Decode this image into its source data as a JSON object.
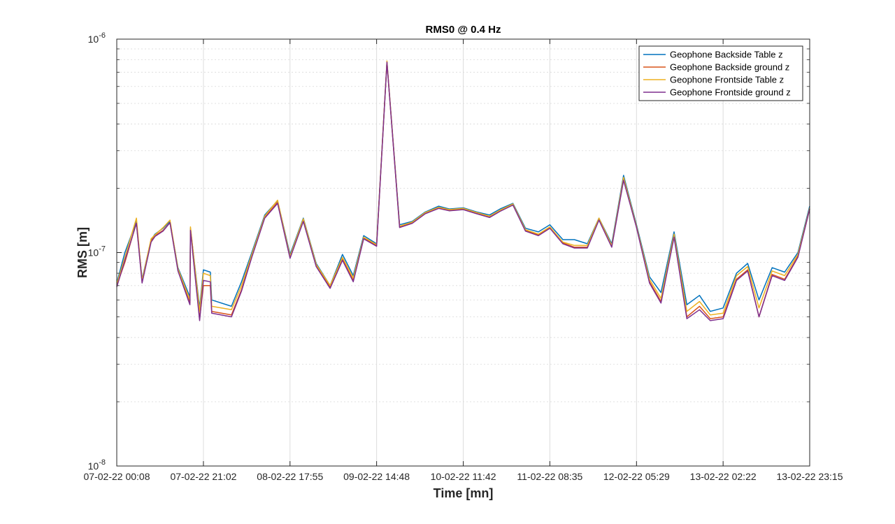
{
  "chart_data": {
    "type": "line",
    "title": "RMS0 @ 0.4 Hz",
    "xlabel": "Time [mn]",
    "ylabel": "RMS [m]",
    "yscale": "log",
    "ylim": [
      1e-08,
      1e-06
    ],
    "y_ticks": [
      {
        "value": 1e-08,
        "mantissa": "10",
        "exponent": "-8"
      },
      {
        "value": 1e-07,
        "mantissa": "10",
        "exponent": "-7"
      },
      {
        "value": 1e-06,
        "mantissa": "10",
        "exponent": "-6"
      }
    ],
    "x_ticks": [
      "07-02-22 00:08",
      "07-02-22 21:02",
      "08-02-22 17:55",
      "09-02-22 14:48",
      "10-02-22 11:42",
      "11-02-22 08:35",
      "12-02-22 05:29",
      "13-02-22 02:22",
      "13-02-22 23:15"
    ],
    "xlim": [
      "07-02-22 00:08",
      "13-02-22 23:15"
    ],
    "grid": true,
    "legend_position": "top-right",
    "series": [
      {
        "name": "Geophone Backside Table z",
        "color": "#0072BD",
        "x": [
          "07-02-22 00:08",
          "07-02-22 06:14",
          "07-02-22 09:21",
          "07-02-22 12:58",
          "07-02-22 17:54",
          "07-02-22 21:02",
          "07-02-22 22:42",
          "07-02-22 02:05",
          "07-02-22 04:52",
          "07-02-22 08:25",
          "07-02-22 11:18",
          "07-02-22 14:53",
          "07-02-22 17:46",
          "07-02-22 20:07",
          "07-02-22 23:02",
          "08-02-22 03:47",
          "08-02-22 06:13",
          "08-02-22 08:42",
          "08-02-22 11:49",
          "08-02-22 14:55",
          "08-02-22 17:55",
          "08-02-22 21:08",
          "09-02-22 00:14",
          "09-02-22 03:35",
          "09-02-22 06:34",
          "09-02-22 09:10",
          "09-02-22 11:41",
          "09-02-22 14:48",
          "09-02-22 17:18",
          "09-02-22 20:21",
          "09-02-22 23:24",
          "10-02-22 02:32",
          "10-02-22 05:46",
          "10-02-22 08:19",
          "10-02-22 11:42",
          "10-02-22 14:55",
          "10-02-22 18:02",
          "10-02-22 20:35",
          "10-02-22 23:41",
          "11-02-22 02:42",
          "11-02-22 05:49",
          "11-02-22 08:35",
          "11-02-22 11:43",
          "11-02-22 14:30",
          "11-02-22 17:37",
          "11-02-22 20:25",
          "11-02-22 23:31",
          "12-02-22 02:22",
          "12-02-22 05:29",
          "12-02-22 08:37",
          "12-02-22 11:23",
          "12-02-22 14:32",
          "12-02-22 17:37",
          "12-02-22 20:40",
          "12-02-22 23:16",
          "13-02-22 02:22",
          "13-02-22 05:36",
          "13-02-22 08:18",
          "13-02-22 11:01",
          "13-02-22 14:12",
          "13-02-22 17:13",
          "13-02-22 20:24",
          "13-02-22 23:15"
        ],
        "y": [
          7.2e-08,
          7.5e-08,
          1.22e-07,
          1.4e-07,
          1.3e-07,
          8.3e-08,
          8.1e-08,
          1e-07,
          1.4e-07,
          1.15e-07,
          1.3e-07,
          8.5e-08,
          6.2e-08,
          5.5e-08,
          6e-08,
          5.6e-08,
          7.3e-08,
          1e-07,
          1.5e-07,
          1.75e-07,
          9.8e-08,
          1.45e-07,
          8.9e-08,
          7e-08,
          9.8e-08,
          7.8e-08,
          1.2e-07,
          1.1e-07,
          7.8e-07,
          1.35e-07,
          1.4e-07,
          1.55e-07,
          1.65e-07,
          1.6e-07,
          1.62e-07,
          1.55e-07,
          1.5e-07,
          1.6e-07,
          1.7e-07,
          1.3e-07,
          1.25e-07,
          1.35e-07,
          1.15e-07,
          1.15e-07,
          1.1e-07,
          1.45e-07,
          1.1e-07,
          2.3e-07,
          1.35e-07,
          7.7e-08,
          6.5e-08,
          1.25e-07,
          5.7e-08,
          6.3e-08,
          5.3e-08,
          5.5e-08,
          8e-08,
          8.9e-08,
          6e-08,
          8.5e-08,
          8.1e-08,
          1e-07,
          1.65e-07
        ]
      },
      {
        "name": "Geophone Backside ground z",
        "color": "#D95319",
        "x": [
          "07-02-22 00:08",
          "07-02-22 06:14",
          "07-02-22 09:21",
          "07-02-22 12:58",
          "07-02-22 17:54",
          "07-02-22 21:02",
          "07-02-22 22:42",
          "07-02-22 02:05",
          "07-02-22 04:52",
          "07-02-22 08:25",
          "07-02-22 11:18",
          "07-02-22 14:53",
          "07-02-22 17:46",
          "07-02-22 20:07",
          "07-02-22 23:02",
          "08-02-22 03:47",
          "08-02-22 06:13",
          "08-02-22 08:42",
          "08-02-22 11:49",
          "08-02-22 14:55",
          "08-02-22 17:55",
          "08-02-22 21:08",
          "09-02-22 00:14",
          "09-02-22 03:35",
          "09-02-22 06:34",
          "09-02-22 09:10",
          "09-02-22 11:41",
          "09-02-22 14:48",
          "09-02-22 17:18",
          "09-02-22 20:21",
          "09-02-22 23:24",
          "10-02-22 02:32",
          "10-02-22 05:46",
          "10-02-22 08:19",
          "10-02-22 11:42",
          "10-02-22 14:55",
          "10-02-22 18:02",
          "10-02-22 20:35",
          "10-02-22 23:41",
          "11-02-22 02:42",
          "11-02-22 05:49",
          "11-02-22 08:35",
          "11-02-22 11:43",
          "11-02-22 14:30",
          "11-02-22 17:37",
          "11-02-22 20:25",
          "11-02-22 23:31",
          "12-02-22 02:22",
          "12-02-22 05:29",
          "12-02-22 08:37",
          "12-02-22 11:23",
          "12-02-22 14:32",
          "12-02-22 17:37",
          "12-02-22 20:40",
          "12-02-22 23:16",
          "13-02-22 02:22",
          "13-02-22 05:36",
          "13-02-22 08:18",
          "13-02-22 11:01",
          "13-02-22 14:12",
          "13-02-22 17:13",
          "13-02-22 20:24",
          "13-02-22 23:15"
        ],
        "y": [
          7e-08,
          7.3e-08,
          1.2e-07,
          1.38e-07,
          1.28e-07,
          7e-08,
          7e-08,
          9e-08,
          1.38e-07,
          1.13e-07,
          1.27e-07,
          8.3e-08,
          5.8e-08,
          4.9e-08,
          5.3e-08,
          5.1e-08,
          6.7e-08,
          9.6e-08,
          1.46e-07,
          1.72e-07,
          9.5e-08,
          1.42e-07,
          8.7e-08,
          6.9e-08,
          9.3e-08,
          7.4e-08,
          1.17e-07,
          1.08e-07,
          7.8e-07,
          1.32e-07,
          1.38e-07,
          1.53e-07,
          1.62e-07,
          1.58e-07,
          1.6e-07,
          1.53e-07,
          1.47e-07,
          1.57e-07,
          1.68e-07,
          1.27e-07,
          1.21e-07,
          1.31e-07,
          1.11e-07,
          1.06e-07,
          1.06e-07,
          1.43e-07,
          1.07e-07,
          2.2e-07,
          1.32e-07,
          7.3e-08,
          5.9e-08,
          1.2e-07,
          5e-08,
          5.6e-08,
          4.9e-08,
          5e-08,
          7.5e-08,
          8.3e-08,
          5e-08,
          7.9e-08,
          7.5e-08,
          9.6e-08,
          1.6e-07
        ]
      },
      {
        "name": "Geophone Frontside Table z",
        "color": "#EDB120",
        "x": [
          "07-02-22 00:08",
          "07-02-22 06:14",
          "07-02-22 09:21",
          "07-02-22 12:58",
          "07-02-22 17:54",
          "07-02-22 21:02",
          "07-02-22 22:42",
          "07-02-22 02:05",
          "07-02-22 04:52",
          "07-02-22 08:25",
          "07-02-22 11:18",
          "07-02-22 14:53",
          "07-02-22 17:46",
          "07-02-22 20:07",
          "07-02-22 23:02",
          "08-02-22 03:47",
          "08-02-22 06:13",
          "08-02-22 08:42",
          "08-02-22 11:49",
          "08-02-22 14:55",
          "08-02-22 17:55",
          "08-02-22 21:08",
          "09-02-22 00:14",
          "09-02-22 03:35",
          "09-02-22 06:34",
          "09-02-22 09:10",
          "09-02-22 11:41",
          "09-02-22 14:48",
          "09-02-22 17:18",
          "09-02-22 20:21",
          "09-02-22 23:24",
          "10-02-22 02:32",
          "10-02-22 05:46",
          "10-02-22 08:19",
          "10-02-22 11:42",
          "10-02-22 14:55",
          "10-02-22 18:02",
          "10-02-22 20:35",
          "10-02-22 23:41",
          "11-02-22 02:42",
          "11-02-22 05:49",
          "11-02-22 08:35",
          "11-02-22 11:43",
          "11-02-22 14:30",
          "11-02-22 17:37",
          "11-02-22 20:25",
          "11-02-22 23:31",
          "12-02-22 02:22",
          "12-02-22 05:29",
          "12-02-22 08:37",
          "12-02-22 11:23",
          "12-02-22 14:32",
          "12-02-22 17:37",
          "12-02-22 20:40",
          "12-02-22 23:16",
          "13-02-22 02:22",
          "13-02-22 05:36",
          "13-02-22 08:18",
          "13-02-22 11:01",
          "13-02-22 14:12",
          "13-02-22 17:13",
          "13-02-22 20:24",
          "13-02-22 23:15"
        ],
        "y": [
          7.1e-08,
          7.4e-08,
          1.21e-07,
          1.42e-07,
          1.32e-07,
          8e-08,
          7.8e-08,
          9.5e-08,
          1.45e-07,
          1.16e-07,
          1.31e-07,
          8.4e-08,
          6e-08,
          5.3e-08,
          5.6e-08,
          5.4e-08,
          7e-08,
          9.8e-08,
          1.48e-07,
          1.76e-07,
          9.6e-08,
          1.44e-07,
          8.8e-08,
          7e-08,
          9.5e-08,
          7.6e-08,
          1.18e-07,
          1.09e-07,
          7.9e-07,
          1.33e-07,
          1.39e-07,
          1.54e-07,
          1.63e-07,
          1.59e-07,
          1.61e-07,
          1.54e-07,
          1.48e-07,
          1.58e-07,
          1.69e-07,
          1.28e-07,
          1.22e-07,
          1.32e-07,
          1.12e-07,
          1.08e-07,
          1.08e-07,
          1.45e-07,
          1.08e-07,
          2.25e-07,
          1.33e-07,
          7.5e-08,
          6.1e-08,
          1.22e-07,
          5.3e-08,
          5.9e-08,
          5.1e-08,
          5.2e-08,
          7.8e-08,
          8.6e-08,
          5.5e-08,
          8.2e-08,
          7.8e-08,
          9.8e-08,
          1.62e-07
        ]
      },
      {
        "name": "Geophone Frontside ground z",
        "color": "#7E2F8E",
        "x": [
          "07-02-22 00:08",
          "07-02-22 06:14",
          "07-02-22 09:21",
          "07-02-22 12:58",
          "07-02-22 17:54",
          "07-02-22 21:02",
          "07-02-22 22:42",
          "07-02-22 02:05",
          "07-02-22 04:52",
          "07-02-22 08:25",
          "07-02-22 11:18",
          "07-02-22 14:53",
          "07-02-22 17:46",
          "07-02-22 20:07",
          "07-02-22 23:02",
          "08-02-22 03:47",
          "08-02-22 06:13",
          "08-02-22 08:42",
          "08-02-22 11:49",
          "08-02-22 14:55",
          "08-02-22 17:55",
          "08-02-22 21:08",
          "09-02-22 00:14",
          "09-02-22 03:35",
          "09-02-22 06:34",
          "09-02-22 09:10",
          "09-02-22 11:41",
          "09-02-22 14:48",
          "09-02-22 17:18",
          "09-02-22 20:21",
          "09-02-22 23:24",
          "10-02-22 02:32",
          "10-02-22 05:46",
          "10-02-22 08:19",
          "10-02-22 11:42",
          "10-02-22 14:55",
          "10-02-22 18:02",
          "10-02-22 20:35",
          "10-02-22 23:41",
          "11-02-22 02:42",
          "11-02-22 05:49",
          "11-02-22 08:35",
          "11-02-22 11:43",
          "11-02-22 14:30",
          "11-02-22 17:37",
          "11-02-22 20:25",
          "11-02-22 23:31",
          "12-02-22 02:22",
          "12-02-22 05:29",
          "12-02-22 08:37",
          "12-02-22 11:23",
          "12-02-22 14:32",
          "12-02-22 17:37",
          "12-02-22 20:40",
          "12-02-22 23:16",
          "13-02-22 02:22",
          "13-02-22 05:36",
          "13-02-22 08:18",
          "13-02-22 11:01",
          "13-02-22 14:12",
          "13-02-22 17:13",
          "13-02-22 20:24",
          "13-02-22 23:15"
        ],
        "y": [
          6.9e-08,
          7.2e-08,
          1.19e-07,
          1.38e-07,
          1.27e-07,
          7.4e-08,
          7.3e-08,
          9.2e-08,
          1.37e-07,
          1.12e-07,
          1.26e-07,
          8.2e-08,
          5.7e-08,
          4.8e-08,
          5.2e-08,
          5e-08,
          6.6e-08,
          9.5e-08,
          1.45e-07,
          1.7e-07,
          9.4e-08,
          1.4e-07,
          8.6e-08,
          6.8e-08,
          9.2e-08,
          7.3e-08,
          1.16e-07,
          1.07e-07,
          7.8e-07,
          1.31e-07,
          1.37e-07,
          1.52e-07,
          1.61e-07,
          1.57e-07,
          1.59e-07,
          1.52e-07,
          1.46e-07,
          1.56e-07,
          1.67e-07,
          1.26e-07,
          1.2e-07,
          1.3e-07,
          1.1e-07,
          1.05e-07,
          1.05e-07,
          1.42e-07,
          1.06e-07,
          2.18e-07,
          1.31e-07,
          7.2e-08,
          5.8e-08,
          1.18e-07,
          4.9e-08,
          5.4e-08,
          4.8e-08,
          4.9e-08,
          7.4e-08,
          8.2e-08,
          5e-08,
          7.8e-08,
          7.4e-08,
          9.5e-08,
          1.6e-07
        ]
      }
    ]
  }
}
